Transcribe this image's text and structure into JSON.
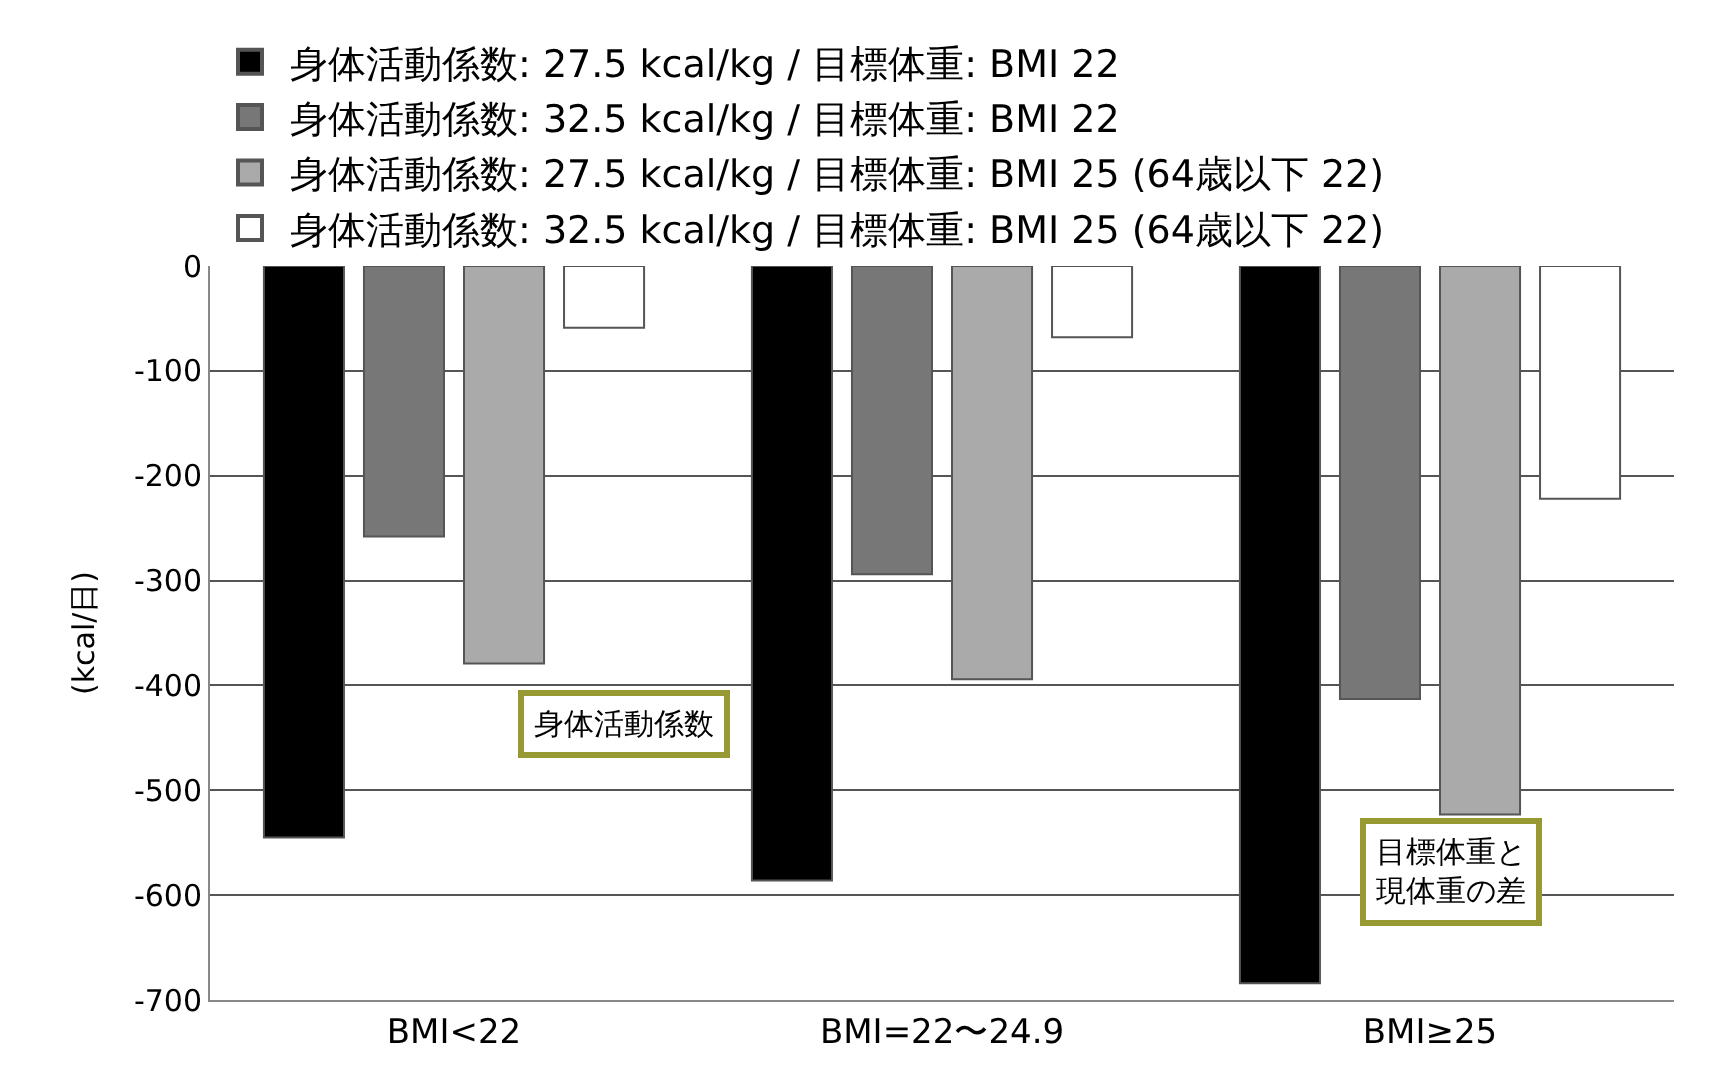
{
  "chart_data": {
    "type": "bar",
    "ylabel": "(kcal/日)",
    "categories": [
      "BMI<22",
      "BMI=22〜24.9",
      "BMI≥25"
    ],
    "series": [
      {
        "name": "身体活動係数: 27.5 kcal/kg / 目標体重: BMI 22",
        "color": "#000000",
        "values": [
          -545,
          -586,
          -684
        ]
      },
      {
        "name": "身体活動係数: 32.5 kcal/kg / 目標体重: BMI 22",
        "color": "#777777",
        "values": [
          -258,
          -294,
          -413
        ]
      },
      {
        "name": "身体活動係数: 27.5 kcal/kg / 目標体重: BMI 25 (64歳以下 22)",
        "color": "#aaaaaa",
        "values": [
          -379,
          -394,
          -523
        ]
      },
      {
        "name": "身体活動係数: 32.5 kcal/kg / 目標体重: BMI 25 (64歳以下 22)",
        "color": "#ffffff",
        "values": [
          -59,
          -68,
          -222
        ]
      }
    ],
    "ylim": [
      -700,
      0
    ],
    "yticks": [
      0,
      -100,
      -200,
      -300,
      -400,
      -500,
      -600,
      -700
    ],
    "grid": "y",
    "legend": "top",
    "annotations": [
      "身体活動係数",
      "目標体重と現体重の差"
    ]
  }
}
